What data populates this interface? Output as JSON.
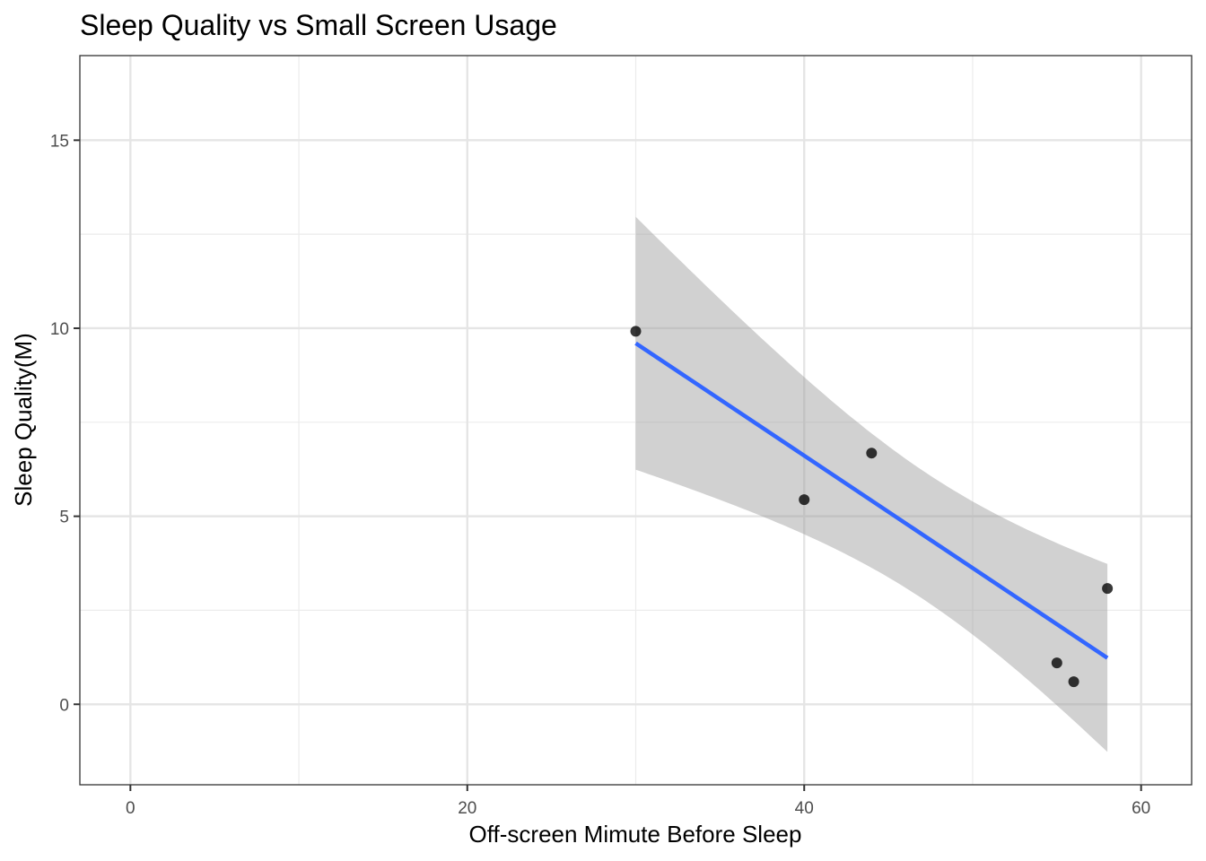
{
  "chart_data": {
    "type": "scatter",
    "title": "Sleep Quality vs Small Screen Usage",
    "xlabel": "Off-screen Mimute Before Sleep",
    "ylabel": "Sleep Quality(M)",
    "xlim": [
      -3.0,
      63.0
    ],
    "ylim": [
      -2.14,
      17.25
    ],
    "x_ticks": [
      0,
      20,
      40,
      60
    ],
    "x_tick_labels": [
      "0",
      "20",
      "40",
      "60"
    ],
    "y_ticks": [
      0,
      5,
      10,
      15
    ],
    "y_tick_labels": [
      "0",
      "5",
      "10",
      "15"
    ],
    "x_minor": [
      10,
      30,
      50
    ],
    "y_minor": [
      2.5,
      7.5,
      12.5
    ],
    "grid": true,
    "points": {
      "x": [
        30,
        40,
        44,
        55,
        56,
        58
      ],
      "y": [
        9.92,
        5.44,
        6.68,
        1.1,
        0.6,
        3.08
      ],
      "color": "#000000"
    },
    "fit": {
      "method": "lm",
      "x_range": [
        30,
        58
      ],
      "line_color": "#3366FF",
      "band_color": "#999999",
      "band_at_x_start": [
        6.29,
        12.97
      ],
      "band_at_x_end": [
        -1.26,
        3.74
      ]
    }
  }
}
